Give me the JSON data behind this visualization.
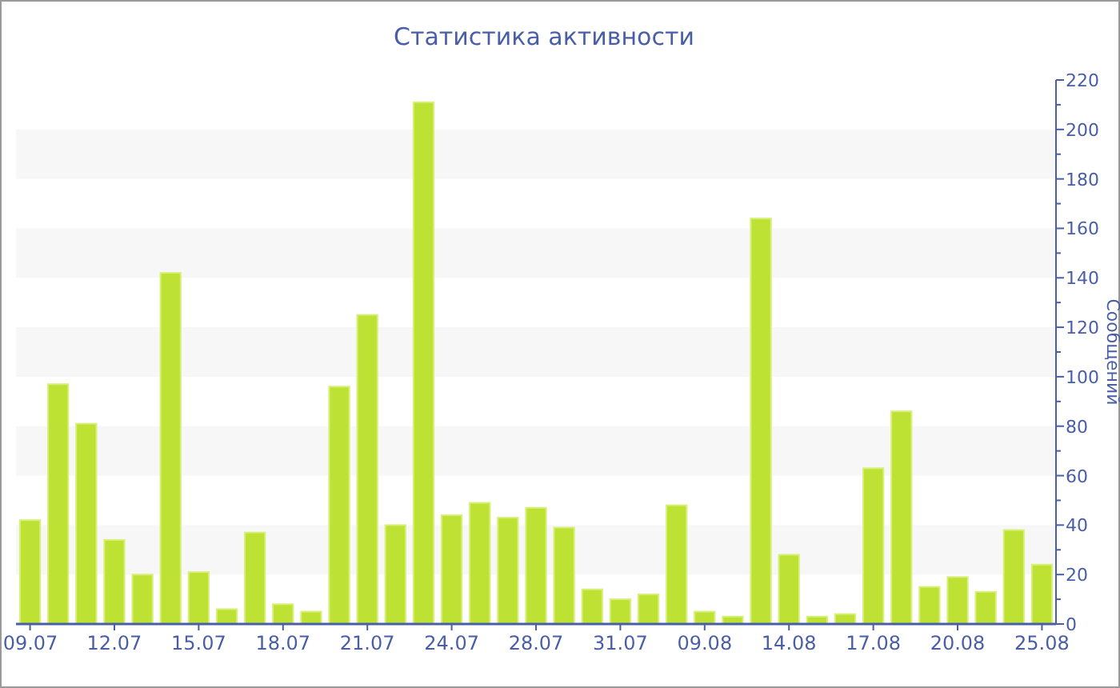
{
  "chart_data": {
    "type": "bar",
    "title": "Статистика активности",
    "ylabel": "Сообщений",
    "categories": [
      "09.07",
      null,
      null,
      "12.07",
      null,
      null,
      "15.07",
      null,
      null,
      "18.07",
      null,
      null,
      "21.07",
      null,
      null,
      "24.07",
      null,
      null,
      "28.07",
      null,
      null,
      "31.07",
      null,
      null,
      "09.08",
      null,
      null,
      "14.08",
      null,
      null,
      "17.08",
      null,
      null,
      "20.08",
      null,
      null,
      "25.08"
    ],
    "values": [
      42,
      97,
      81,
      34,
      20,
      142,
      21,
      6,
      37,
      8,
      5,
      96,
      125,
      40,
      211,
      44,
      49,
      43,
      47,
      39,
      14,
      10,
      12,
      48,
      5,
      3,
      164,
      28,
      3,
      4,
      63,
      86,
      15,
      19,
      13,
      38,
      24
    ],
    "color": "#bde233",
    "ylim": [
      0,
      220
    ],
    "yticks": [
      0,
      {
        "value": 10,
        "label": null
      },
      20,
      {
        "value": 30,
        "label": null
      },
      40,
      {
        "value": 50,
        "label": null
      },
      60,
      {
        "value": 70,
        "label": null
      },
      80,
      {
        "value": 90,
        "label": null
      },
      100,
      {
        "value": 110,
        "label": null
      },
      120,
      {
        "value": 130,
        "label": null
      },
      140,
      {
        "value": 150,
        "label": null
      },
      160,
      {
        "value": 170,
        "label": null
      },
      180,
      {
        "value": 190,
        "label": null
      },
      200,
      {
        "value": 210,
        "label": null
      },
      220
    ],
    "bands": [
      {
        "axis": "y",
        "from": 20,
        "to": 40,
        "color": "#f7f7f7"
      },
      {
        "axis": "y",
        "from": 60,
        "to": 80,
        "color": "#f7f7f7"
      },
      {
        "axis": "y",
        "from": 100,
        "to": 120,
        "color": "#f7f7f7"
      },
      {
        "axis": "y",
        "from": 140,
        "to": 160,
        "color": "#f7f7f7"
      },
      {
        "axis": "y",
        "from": 180,
        "to": 200,
        "color": "#f7f7f7"
      }
    ]
  }
}
